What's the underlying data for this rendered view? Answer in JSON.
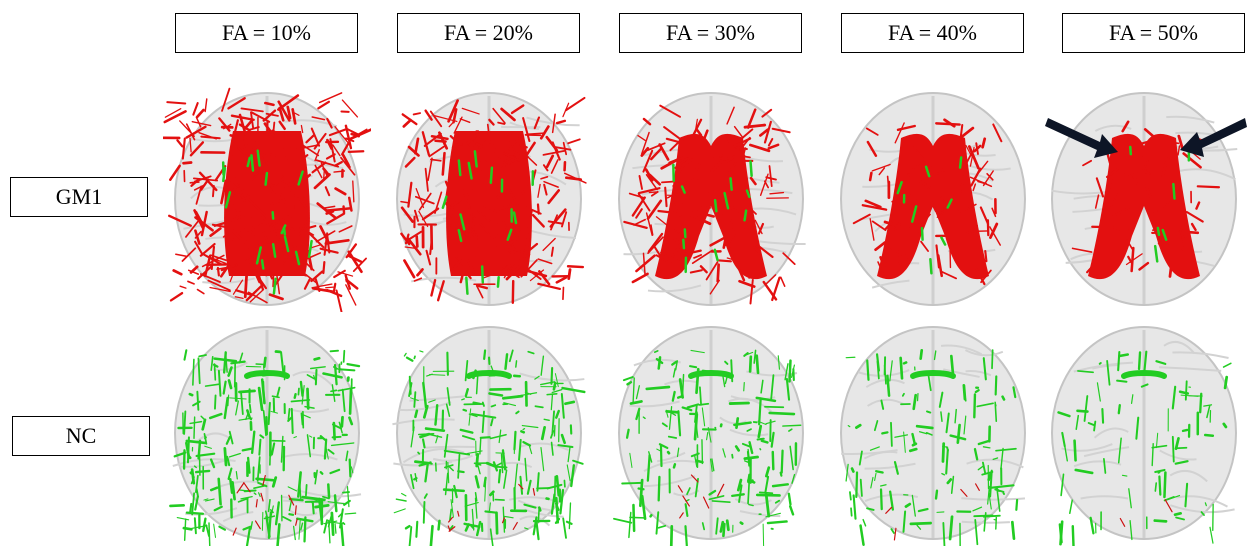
{
  "columns": [
    {
      "label": "FA = 10%",
      "level": 0.1
    },
    {
      "label": "FA = 20%",
      "level": 0.2
    },
    {
      "label": "FA = 30%",
      "level": 0.3
    },
    {
      "label": "FA = 40%",
      "level": 0.4
    },
    {
      "label": "FA = 50%",
      "level": 0.5
    }
  ],
  "rows": [
    {
      "label": "GM1",
      "primary_color": "#e31010",
      "secondary_color": "#22cc22"
    },
    {
      "label": "NC",
      "primary_color": "#22cc22",
      "secondary_color": "#cc1111"
    }
  ],
  "annotation": {
    "icon": "arrow-icon",
    "color": "#0d1526"
  }
}
